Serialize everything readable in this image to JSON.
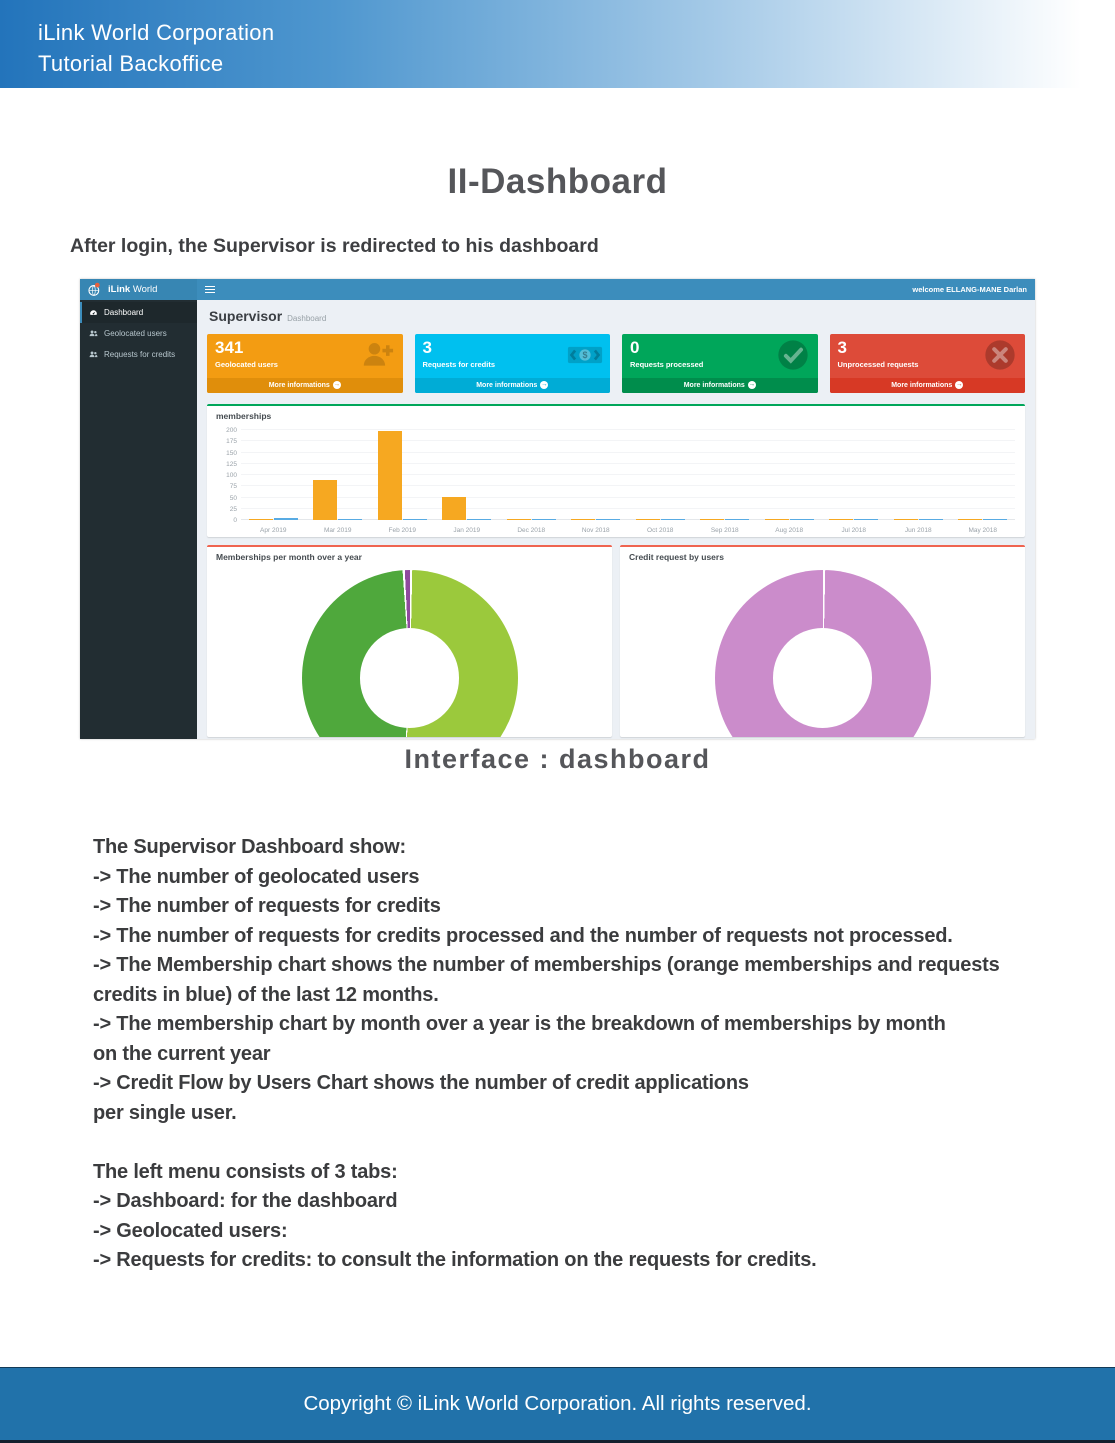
{
  "page": {
    "header": {
      "line1": "iLink World Corporation",
      "line2": "Tutorial Backoffice"
    },
    "title": "II-Dashboard",
    "intro": "After login, the Supervisor is redirected to his dashboard",
    "caption": "Interface : dashboard",
    "body_lines": [
      "The Supervisor Dashboard show:",
      "-> The number of geolocated users",
      "-> The number of requests for credits",
      "-> The number of requests for credits processed and the number of requests not processed.",
      "-> The Membership chart shows the number of memberships (orange memberships and requests",
      "credits in blue) of the last 12 months.",
      "-> The membership chart by month over a year is the breakdown of memberships by month",
      "on the current year",
      "-> Credit Flow by Users Chart shows the number of credit applications",
      "per single user.",
      "",
      "The left menu consists of 3 tabs:",
      "-> Dashboard: for the dashboard",
      "-> Geolocated users:",
      "-> Requests for credits: to consult the information on the requests for credits."
    ],
    "footer": "Copyright © iLink World Corporation. All rights reserved."
  },
  "dashboard": {
    "brand_bold": "iLink",
    "brand_regular": "World",
    "welcome": "welcome ELLANG-MANE Darlan",
    "heading_title": "Supervisor",
    "heading_subtitle": "Dashboard",
    "sidebar_items": [
      {
        "label": "Dashboard",
        "icon": "gauge-icon",
        "active": true
      },
      {
        "label": "Geolocated users",
        "icon": "users-icon",
        "active": false
      },
      {
        "label": "Requests for credits",
        "icon": "users-icon",
        "active": false
      }
    ],
    "info_boxes": [
      {
        "value": "341",
        "label": "Geolocated users",
        "link": "More informations",
        "color": "#f39c12",
        "footer_color": "#e08e0b",
        "icon": "user-plus-icon"
      },
      {
        "value": "3",
        "label": "Requests for credits",
        "link": "More informations",
        "color": "#00c0ef",
        "footer_color": "#00acd6",
        "icon": "banknote-icon"
      },
      {
        "value": "0",
        "label": "Requests processed",
        "link": "More informations",
        "color": "#00a65a",
        "footer_color": "#008d4c",
        "icon": "check-circle-icon"
      },
      {
        "value": "3",
        "label": "Unprocessed requests",
        "link": "More informations",
        "color": "#dd4b39",
        "footer_color": "#d73925",
        "icon": "x-circle-icon"
      }
    ]
  },
  "chart_data": [
    {
      "type": "bar",
      "title": "memberships",
      "categories": [
        "Apr 2019",
        "Mar 2019",
        "Feb 2019",
        "Jan 2019",
        "Dec 2018",
        "Nov 2018",
        "Oct 2018",
        "Sep 2018",
        "Aug 2018",
        "Jul 2018",
        "Jun 2018",
        "May 2018"
      ],
      "series": [
        {
          "name": "memberships",
          "color": "#f6a821",
          "values": [
            2,
            90,
            198,
            52,
            1,
            3,
            1,
            1,
            1,
            1,
            2,
            1
          ]
        },
        {
          "name": "requests credits",
          "color": "#58abe3",
          "values": [
            5,
            1,
            1,
            1,
            1,
            1,
            1,
            1,
            1,
            1,
            1,
            1
          ]
        }
      ],
      "ylim": [
        0,
        200
      ],
      "yticks": [
        0,
        25,
        50,
        75,
        100,
        125,
        150,
        175,
        200
      ],
      "grid": true,
      "legend": "none"
    },
    {
      "type": "pie",
      "subtype": "donut",
      "title": "Memberships per month over a year",
      "slices": [
        {
          "label": "segment-a",
          "pct": 50.8,
          "color": "#9bc93c"
        },
        {
          "label": "segment-b",
          "pct": 48.1,
          "color": "#4fa83c"
        },
        {
          "label": "segment-c",
          "pct": 1.1,
          "color": "#8f4a9e"
        }
      ]
    },
    {
      "type": "pie",
      "subtype": "donut",
      "title": "Credit request by users",
      "slices": [
        {
          "label": "segment-a",
          "pct": 100,
          "color": "#cb8ccb"
        }
      ]
    }
  ]
}
